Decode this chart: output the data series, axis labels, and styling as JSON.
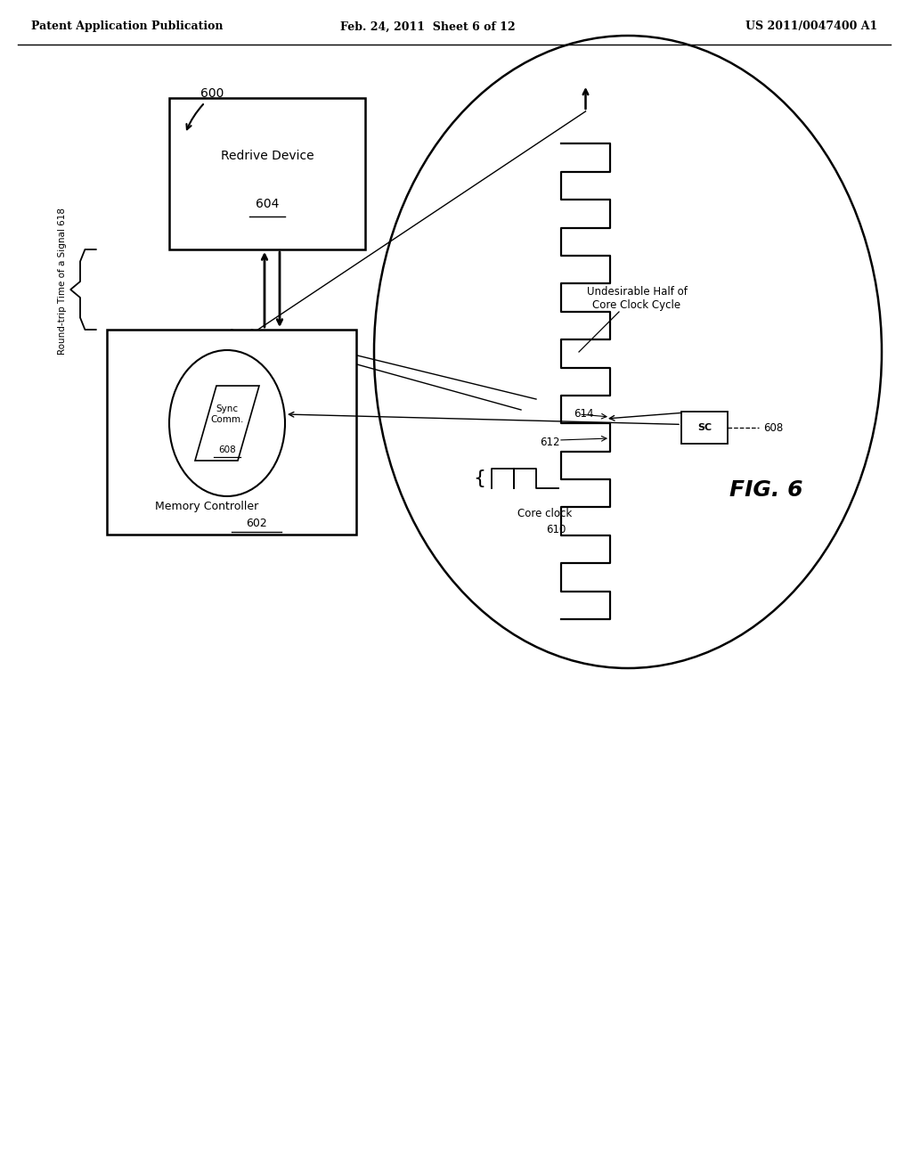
{
  "background_color": "#ffffff",
  "header_left": "Patent Application Publication",
  "header_middle": "Feb. 24, 2011  Sheet 6 of 12",
  "header_right": "US 2011/0047400 A1",
  "fig_label": "FIG. 6",
  "label_600": "600",
  "label_604": "604",
  "label_602": "602",
  "label_608": "608",
  "label_610": "610",
  "label_612": "612",
  "label_614": "614",
  "label_618": "618",
  "text_redrive": "Redrive Device",
  "text_memory": "Memory Controller",
  "text_sync": "Sync\nComm.",
  "text_roundtrip": "Round-trip Time of a Signal 618",
  "text_undesirable": "Undesirable Half of\nCore Clock Cycle",
  "text_coreclock": "Core clock",
  "text_sc": "SC"
}
